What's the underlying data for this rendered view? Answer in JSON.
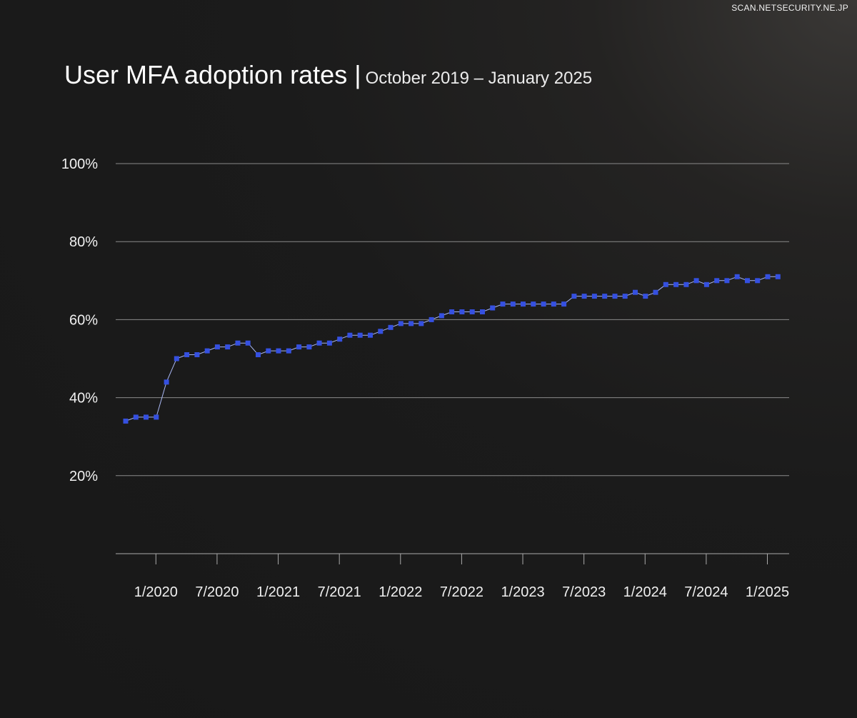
{
  "watermark": "SCAN.NETSECURITY.NE.JP",
  "chart_data": {
    "type": "line",
    "title": "User MFA adoption rates",
    "subtitle": "October 2019 – January 2025",
    "xlabel": "",
    "ylabel": "",
    "ylim": [
      0,
      100
    ],
    "ytick_labels": [
      "20%",
      "40%",
      "60%",
      "80%",
      "100%"
    ],
    "yticks": [
      20,
      40,
      60,
      80,
      100
    ],
    "xtick_labels": [
      "1/2020",
      "7/2020",
      "1/2021",
      "7/2021",
      "1/2022",
      "7/2022",
      "1/2023",
      "7/2023",
      "1/2024",
      "7/2024",
      "1/2025"
    ],
    "xtick_indices": [
      3,
      9,
      15,
      21,
      27,
      33,
      39,
      45,
      51,
      57,
      63
    ],
    "grid": true,
    "legend": "none",
    "colors": {
      "series": "#3550e0",
      "line": "#a9b7f2",
      "grid": "#8a8a8a",
      "axis": "#aaaaaa"
    },
    "series": [
      {
        "values": [
          34,
          35,
          35,
          35,
          44,
          50,
          51,
          51,
          52,
          53,
          53,
          54,
          54,
          51,
          52,
          52,
          52,
          53,
          53,
          54,
          54,
          55,
          56,
          56,
          56,
          57,
          58,
          59,
          59,
          59,
          60,
          61,
          62,
          62,
          62,
          62,
          63,
          64,
          64,
          64,
          64,
          64,
          64,
          64,
          66,
          66,
          66,
          66,
          66,
          66,
          67,
          66,
          67,
          69,
          69,
          69,
          70,
          69,
          70,
          70,
          71,
          70,
          70,
          71,
          71
        ]
      }
    ]
  }
}
